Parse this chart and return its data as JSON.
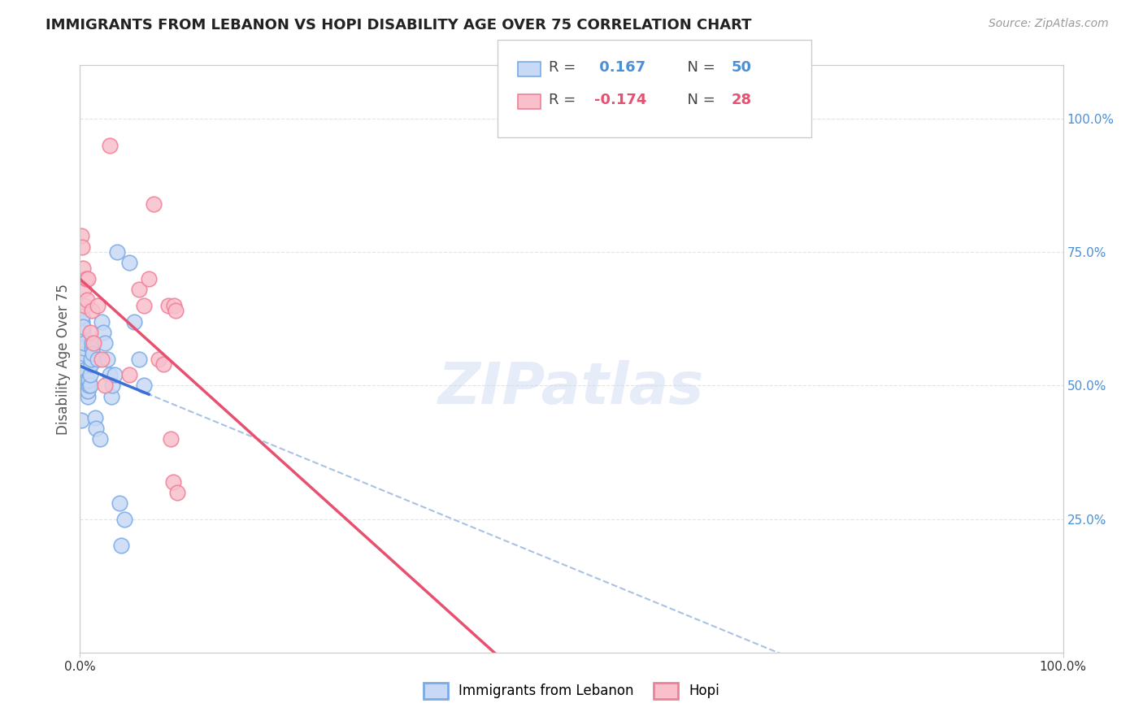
{
  "title": "IMMIGRANTS FROM LEBANON VS HOPI DISABILITY AGE OVER 75 CORRELATION CHART",
  "source": "Source: ZipAtlas.com",
  "ylabel": "Disability Age Over 75",
  "legend_label1": "Immigrants from Lebanon",
  "legend_label2": "Hopi",
  "R1": 0.167,
  "N1": 50,
  "R2": -0.174,
  "N2": 28,
  "blue_face_color": "#c8d9f5",
  "blue_edge_color": "#7aaae8",
  "pink_face_color": "#f9c0cc",
  "pink_edge_color": "#f08098",
  "blue_line_color": "#3a6fd4",
  "pink_line_color": "#e85070",
  "dashed_line_color": "#a0bce0",
  "background_color": "#ffffff",
  "grid_color": "#e0e0e0",
  "blue_points_x": [
    0.001,
    0.002,
    0.002,
    0.003,
    0.003,
    0.003,
    0.004,
    0.004,
    0.004,
    0.005,
    0.005,
    0.005,
    0.005,
    0.006,
    0.006,
    0.006,
    0.007,
    0.007,
    0.007,
    0.008,
    0.008,
    0.009,
    0.009,
    0.01,
    0.01,
    0.011,
    0.011,
    0.012,
    0.012,
    0.013,
    0.015,
    0.016,
    0.018,
    0.02,
    0.022,
    0.024,
    0.025,
    0.028,
    0.03,
    0.032,
    0.033,
    0.035,
    0.038,
    0.04,
    0.042,
    0.045,
    0.05,
    0.055,
    0.06,
    0.065
  ],
  "blue_points_y": [
    0.435,
    0.62,
    0.63,
    0.58,
    0.6,
    0.61,
    0.55,
    0.56,
    0.57,
    0.58,
    0.51,
    0.52,
    0.53,
    0.49,
    0.5,
    0.51,
    0.49,
    0.5,
    0.51,
    0.48,
    0.49,
    0.5,
    0.51,
    0.5,
    0.52,
    0.54,
    0.55,
    0.57,
    0.58,
    0.56,
    0.44,
    0.42,
    0.55,
    0.4,
    0.62,
    0.6,
    0.58,
    0.55,
    0.52,
    0.48,
    0.5,
    0.52,
    0.75,
    0.28,
    0.2,
    0.25,
    0.73,
    0.62,
    0.55,
    0.5
  ],
  "pink_points_x": [
    0.001,
    0.002,
    0.003,
    0.004,
    0.005,
    0.006,
    0.007,
    0.008,
    0.01,
    0.012,
    0.014,
    0.018,
    0.022,
    0.025,
    0.03,
    0.05,
    0.06,
    0.065,
    0.07,
    0.075,
    0.08,
    0.085,
    0.09,
    0.092,
    0.095,
    0.096,
    0.097,
    0.099
  ],
  "pink_points_y": [
    0.78,
    0.76,
    0.72,
    0.68,
    0.65,
    0.7,
    0.66,
    0.7,
    0.6,
    0.64,
    0.58,
    0.65,
    0.55,
    0.5,
    0.95,
    0.52,
    0.68,
    0.65,
    0.7,
    0.84,
    0.55,
    0.54,
    0.65,
    0.4,
    0.32,
    0.65,
    0.64,
    0.3
  ],
  "xlim": [
    0.0,
    1.0
  ],
  "ylim": [
    0.0,
    1.1
  ],
  "yticks": [
    0.25,
    0.5,
    0.75,
    1.0
  ],
  "ytick_labels": [
    "25.0%",
    "50.0%",
    "75.0%",
    "100.0%"
  ],
  "watermark": "ZIPatlas"
}
